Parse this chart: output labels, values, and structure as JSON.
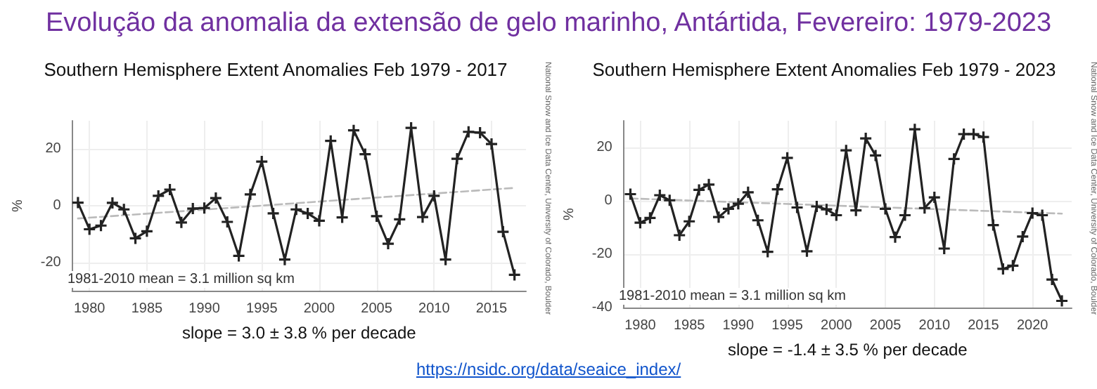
{
  "chart_data": [
    {
      "type": "line",
      "title": "Southern Hemisphere Extent Anomalies Feb 1979 - 2017",
      "xlabel": "slope = 3.0 ± 3.8 % per decade",
      "ylabel": "%",
      "annotations": [
        "Evolução da anomalia da extensão de gelo marinho, Antártida, Fevereiro: 1979-2023",
        "1981-2010 mean = 3.1 million sq km",
        "National Snow and Ice Data Center, University of Colorado, Boulder"
      ],
      "x": [
        1979,
        1980,
        1981,
        1982,
        1983,
        1984,
        1985,
        1986,
        1987,
        1988,
        1989,
        1990,
        1991,
        1992,
        1993,
        1994,
        1995,
        1996,
        1997,
        1998,
        1999,
        2000,
        2001,
        2002,
        2003,
        2004,
        2005,
        2006,
        2007,
        2008,
        2009,
        2010,
        2011,
        2012,
        2013,
        2014,
        2015,
        2016,
        2017
      ],
      "series": [
        {
          "color": "#222222",
          "marker": "cross",
          "values": [
            1.1,
            -8.3,
            -7,
            1,
            -1.3,
            -11.5,
            -9,
            3.5,
            5.7,
            -5.9,
            -1,
            -0.8,
            2.7,
            -5.7,
            -17.7,
            4,
            15.6,
            -2.7,
            -19,
            -1.3,
            -2.7,
            -5.3,
            22.9,
            -4.1,
            26.6,
            18.2,
            -3.7,
            -13.4,
            -4.8,
            27.5,
            -4,
            3.5,
            -19,
            16.6,
            26.1,
            25.8,
            21.8,
            -9.2,
            -24.4
          ]
        },
        {
          "color": "#bbbbbb",
          "marker": "none",
          "line_style": "dashed",
          "x": [
            1979,
            2017
          ],
          "values": [
            -4.5,
            6.3
          ]
        }
      ],
      "xlim": [
        1978.5,
        2018
      ],
      "xticks": [
        1980,
        1985,
        1990,
        1995,
        2000,
        2005,
        2010,
        2015
      ],
      "ylim": [
        -30,
        30
      ],
      "yticks": [
        -20,
        0,
        20
      ],
      "grid": true
    },
    {
      "type": "line",
      "title": "Southern Hemisphere Extent Anomalies Feb 1979 - 2023",
      "xlabel": "slope = -1.4 ± 3.5 % per decade",
      "ylabel": "%",
      "annotations": [
        "1981-2010 mean = 3.1 million sq km",
        "National Snow and Ice Data Center, University of Colorado, Boulder",
        "https://nsidc.org/data/seaice_index/"
      ],
      "x": [
        1979,
        1980,
        1981,
        1982,
        1983,
        1984,
        1985,
        1986,
        1987,
        1988,
        1989,
        1990,
        1991,
        1992,
        1993,
        1994,
        1995,
        1996,
        1997,
        1998,
        1999,
        2000,
        2001,
        2002,
        2003,
        2004,
        2005,
        2006,
        2007,
        2008,
        2009,
        2010,
        2011,
        2012,
        2013,
        2014,
        2015,
        2016,
        2017,
        2018,
        2019,
        2020,
        2021,
        2022,
        2023
      ],
      "series": [
        {
          "color": "#222222",
          "marker": "cross",
          "values": [
            2.5,
            -8.2,
            -6.4,
            2.1,
            0.2,
            -12.9,
            -7.7,
            4.1,
            6.1,
            -6.1,
            -3,
            -1.1,
            3.2,
            -7.3,
            -19.1,
            4.3,
            16.1,
            -2.5,
            -18.9,
            -2.1,
            -3.2,
            -5.4,
            18.9,
            -3.6,
            23.4,
            17,
            -3,
            -13.6,
            -5.4,
            26.8,
            -2.7,
            1.3,
            -17.9,
            15.7,
            25,
            25,
            23.9,
            -9.1,
            -25.5,
            -24.3,
            -13.4,
            -4.6,
            -5.4,
            -29.5,
            -37.5
          ]
        },
        {
          "color": "#bbbbbb",
          "marker": "none",
          "line_style": "dashed",
          "x": [
            1979,
            2023
          ],
          "values": [
            0.9,
            -4.8
          ]
        }
      ],
      "xlim": [
        1978.3,
        2024
      ],
      "xticks": [
        1980,
        1985,
        1990,
        1995,
        2000,
        2005,
        2010,
        2015,
        2020
      ],
      "ylim": [
        -40,
        30
      ],
      "yticks": [
        -40,
        -20,
        0,
        20
      ],
      "grid": true
    }
  ]
}
